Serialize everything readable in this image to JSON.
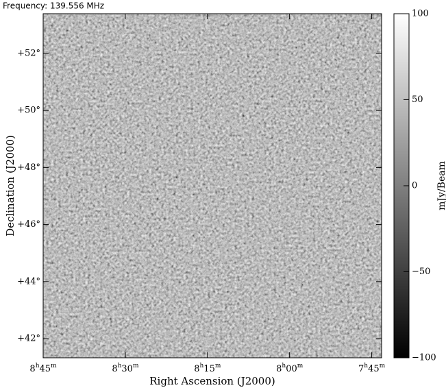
{
  "chart_data": {
    "type": "image",
    "title": "Frequency: 139.556 MHz",
    "x_label": "Right Ascension (J2000)",
    "y_label": "Declination (J2000)",
    "xlim": [
      8.75,
      7.72
    ],
    "xticks": [
      {
        "value": 8.75,
        "label": "8h45m"
      },
      {
        "value": 8.5,
        "label": "8h30m"
      },
      {
        "value": 8.25,
        "label": "8h15m"
      },
      {
        "value": 8.0,
        "label": "8h00m"
      },
      {
        "value": 7.75,
        "label": "7h45m"
      }
    ],
    "ylim": [
      41.33,
      53.39
    ],
    "yticks": [
      {
        "value": 42,
        "label": "+42°"
      },
      {
        "value": 44,
        "label": "+44°"
      },
      {
        "value": 46,
        "label": "+46°"
      },
      {
        "value": 48,
        "label": "+48°"
      },
      {
        "value": 50,
        "label": "+50°"
      },
      {
        "value": 52,
        "label": "+52°"
      }
    ],
    "colorbar": {
      "label": "mJy/Beam",
      "colors": [
        "#000000",
        "#ffffff"
      ],
      "clim": [
        -100,
        100
      ],
      "ticks": [
        100,
        50,
        0,
        {
          "value": -50,
          "label": "−50"
        },
        {
          "value": -100,
          "label": "−100"
        }
      ]
    }
  }
}
